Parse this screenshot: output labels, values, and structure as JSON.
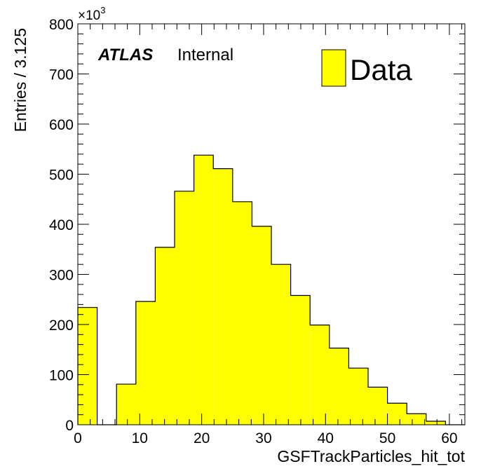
{
  "chart_data": {
    "type": "histogram",
    "xlabel": "GSFTrackParticles_hit_tot",
    "ylabel": "Entries / 3.125",
    "y_multiplier_label": "×10",
    "y_multiplier_exponent": "3",
    "xlim": [
      0,
      62.5
    ],
    "ylim": [
      0,
      800
    ],
    "x_ticks": [
      "0",
      "10",
      "20",
      "30",
      "40",
      "50",
      "60"
    ],
    "y_ticks": [
      "0",
      "100",
      "200",
      "300",
      "400",
      "500",
      "600",
      "700",
      "800"
    ],
    "bin_width": 3.125,
    "bin_edges": [
      0,
      3.125,
      6.25,
      9.375,
      12.5,
      15.625,
      18.75,
      21.875,
      25,
      28.125,
      31.25,
      34.375,
      37.5,
      40.625,
      43.75,
      46.875,
      50,
      53.125,
      56.25,
      59.375,
      62.5
    ],
    "series": [
      {
        "name": "Data",
        "color": "#ffff00",
        "values": [
          234,
          0,
          81,
          246,
          354,
          466,
          538,
          511,
          445,
          396,
          320,
          258,
          199,
          153,
          113,
          75,
          43,
          22,
          7,
          0
        ]
      }
    ],
    "legend_position": "top-right",
    "grid": false
  },
  "annotations": {
    "experiment": "ATLAS",
    "status": "Internal"
  },
  "colors": {
    "fill": "#ffff00",
    "axis": "#000000",
    "background": "#ffffff"
  }
}
